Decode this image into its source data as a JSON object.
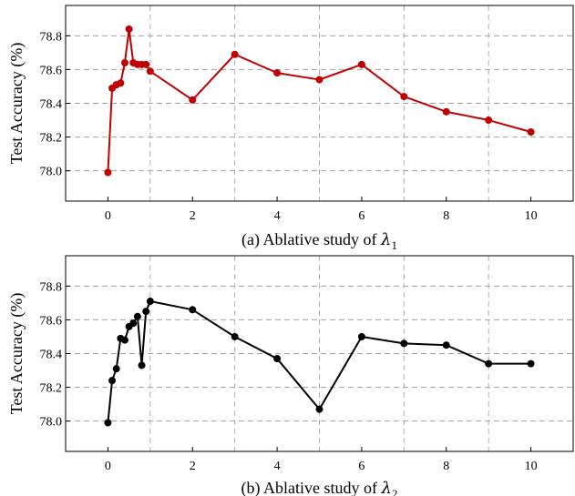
{
  "chart_data": [
    {
      "type": "line",
      "caption_prefix": "(a) Ablative study of ",
      "caption_symbol": "λ",
      "caption_subscript": "1",
      "xlabel": "",
      "ylabel": "Test Accuracy (%)",
      "xlim": [
        -1,
        11
      ],
      "ylim": [
        77.82,
        78.98
      ],
      "xticks": [
        0,
        2,
        4,
        6,
        8,
        10
      ],
      "yticks": [
        78.0,
        78.2,
        78.4,
        78.6,
        78.8
      ],
      "vgrid": [
        1,
        3,
        5,
        7,
        9
      ],
      "grid": true,
      "color": "#c00000",
      "series": [
        {
          "x": [
            0,
            0.1,
            0.2,
            0.3,
            0.4,
            0.5,
            0.6,
            0.7,
            0.8,
            0.9,
            1,
            2,
            3,
            4,
            5,
            6,
            7,
            8,
            9,
            10
          ],
          "y": [
            77.99,
            78.49,
            78.51,
            78.52,
            78.64,
            78.84,
            78.64,
            78.63,
            78.63,
            78.63,
            78.59,
            78.42,
            78.69,
            78.58,
            78.54,
            78.63,
            78.44,
            78.35,
            78.3,
            78.23
          ]
        }
      ]
    },
    {
      "type": "line",
      "caption_prefix": "(b) Ablative study of ",
      "caption_symbol": "λ",
      "caption_subscript": "2",
      "xlabel": "",
      "ylabel": "Test Accuracy (%)",
      "xlim": [
        -1,
        11
      ],
      "ylim": [
        77.82,
        78.98
      ],
      "xticks": [
        0,
        2,
        4,
        6,
        8,
        10
      ],
      "yticks": [
        78.0,
        78.2,
        78.4,
        78.6,
        78.8
      ],
      "vgrid": [
        1,
        3,
        5,
        7,
        9
      ],
      "grid": true,
      "color": "#000000",
      "series": [
        {
          "x": [
            0,
            0.1,
            0.2,
            0.3,
            0.4,
            0.5,
            0.6,
            0.7,
            0.8,
            0.9,
            1,
            2,
            3,
            4,
            5,
            6,
            7,
            8,
            9,
            10
          ],
          "y": [
            77.99,
            78.24,
            78.31,
            78.49,
            78.48,
            78.56,
            78.58,
            78.62,
            78.33,
            78.65,
            78.71,
            78.66,
            78.5,
            78.37,
            78.07,
            78.5,
            78.46,
            78.45,
            78.34,
            78.34
          ]
        }
      ]
    }
  ]
}
